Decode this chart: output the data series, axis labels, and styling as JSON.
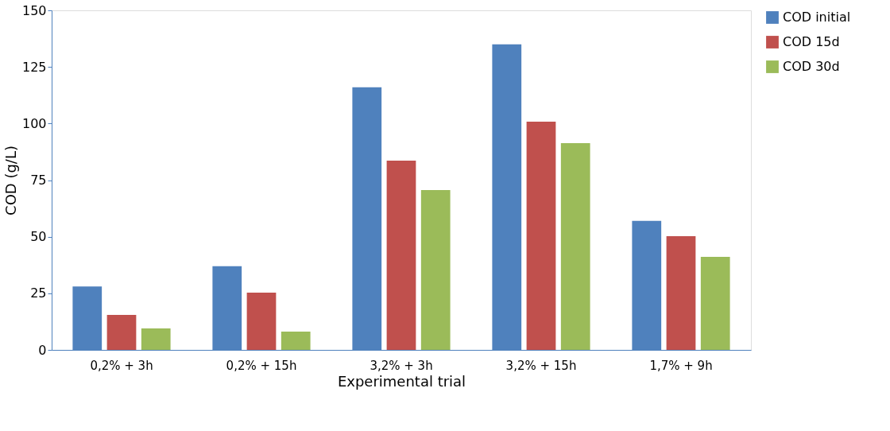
{
  "chart_data": {
    "type": "bar",
    "xlabel": "Experimental trial",
    "ylabel": "COD (g/L)",
    "categories": [
      "0,2% + 3h",
      "0,2% + 15h",
      "3,2% + 3h",
      "3,2% + 15h",
      "1,7% + 9h"
    ],
    "series": [
      {
        "name": "COD initial",
        "color": "#4f81bd",
        "values": [
          28,
          37,
          116,
          135,
          57
        ]
      },
      {
        "name": "COD 15d",
        "color": "#c0504d",
        "values": [
          15.5,
          25.3,
          83.6,
          100.8,
          50.2
        ]
      },
      {
        "name": "COD 30d",
        "color": "#9bbb59",
        "values": [
          9.5,
          8.1,
          70.6,
          91.3,
          41.1
        ]
      }
    ],
    "ylim": [
      0,
      150
    ],
    "yticks": [
      0,
      25,
      50,
      75,
      100,
      125,
      150
    ],
    "grid": false,
    "legend": "top right"
  }
}
